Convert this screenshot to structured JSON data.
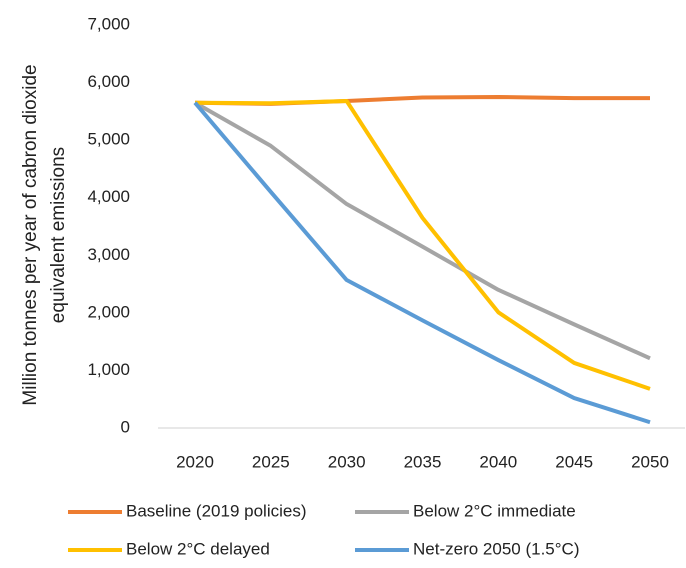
{
  "chart_data": {
    "type": "line",
    "ylabel": [
      "Million tonnes per year of cabron dioxide",
      "equivalent emissions"
    ],
    "categories": [
      "2020",
      "2025",
      "2030",
      "2035",
      "2040",
      "2045",
      "2050"
    ],
    "series": [
      {
        "name": "Baseline (2019 policies)",
        "color": "#ed7d31",
        "values": [
          5650,
          5630,
          5680,
          5740,
          5750,
          5730,
          5730
        ]
      },
      {
        "name": "Below 2°C immediate",
        "color": "#a5a5a5",
        "values": [
          5650,
          4900,
          3890,
          3150,
          2400,
          1800,
          1210
        ]
      },
      {
        "name": "Below 2°C delayed",
        "color": "#ffc000",
        "values": [
          5650,
          5640,
          5680,
          3650,
          2010,
          1130,
          680
        ]
      },
      {
        "name": "Net-zero 2050 (1.5°C)",
        "color": "#5b9bd5",
        "values": [
          5650,
          4100,
          2570,
          1870,
          1180,
          520,
          100
        ]
      }
    ],
    "ylim": [
      0,
      7000
    ],
    "yticks": [
      0,
      {
        "value": 1000,
        "label": "1,000"
      },
      {
        "value": 2000,
        "label": "2,000"
      },
      {
        "value": 3000,
        "label": "3,000"
      },
      {
        "value": 4000,
        "label": "4,000"
      },
      {
        "value": 5000,
        "label": "5,000"
      },
      {
        "value": 6000,
        "label": "6,000"
      },
      {
        "value": 7000,
        "label": "7,000"
      }
    ],
    "grid": false
  }
}
